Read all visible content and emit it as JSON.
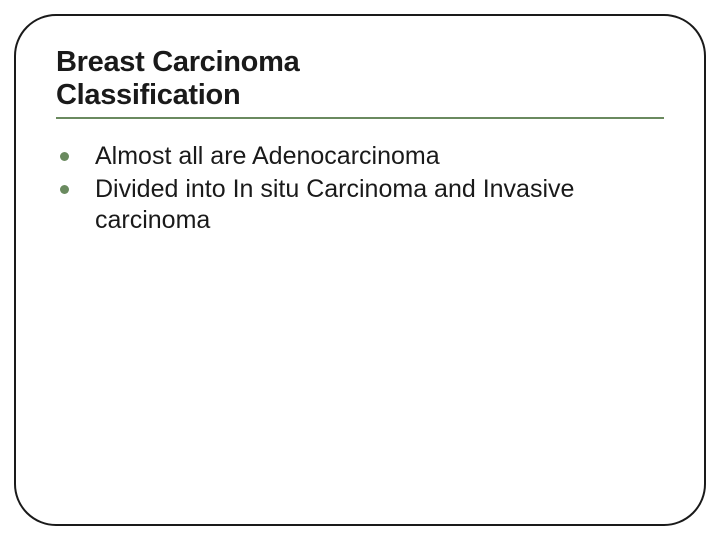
{
  "slide": {
    "title_line1": "Breast Carcinoma",
    "title_line2": "Classification",
    "bullets": [
      {
        "text": "Almost all are Adenocarcinoma"
      },
      {
        "text": "Divided into In situ Carcinoma and Invasive carcinoma"
      }
    ],
    "styling": {
      "frame_border_color": "#1a1a1a",
      "frame_border_width": 2,
      "frame_border_radius": 42,
      "underline_color": "#6a8a5f",
      "bullet_color": "#6a8a5f",
      "title_fontsize": 29,
      "title_fontweight": 900,
      "body_fontsize": 25,
      "text_color": "#1a1a1a",
      "background_color": "#ffffff"
    }
  }
}
